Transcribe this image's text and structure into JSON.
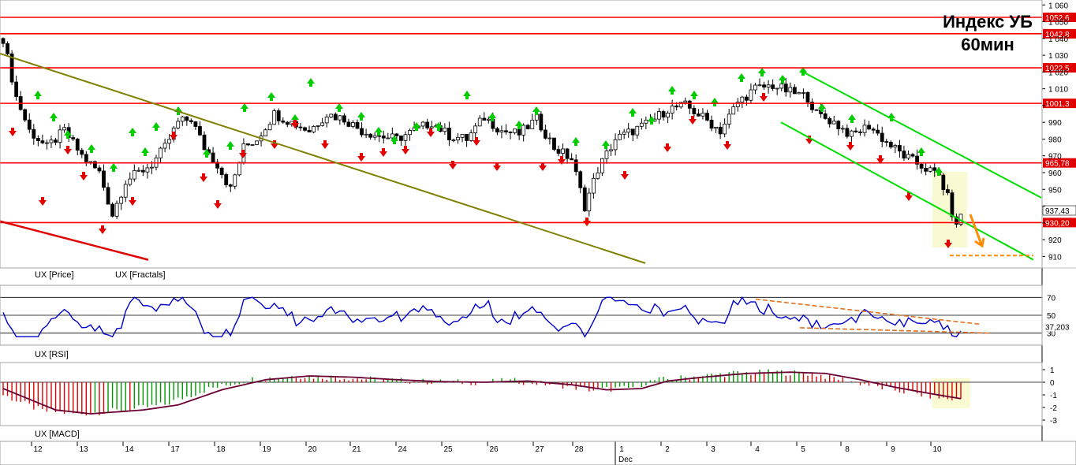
{
  "chart_data": {
    "type": "candlestick",
    "title_line1": "Индекс УБ",
    "title_line2": "60мин",
    "colors": {
      "bull_body": "#ffffff",
      "bear_body": "#000000",
      "candle_line": "#000000",
      "hline": "#ff0000",
      "trend_main": "#808000",
      "trend_fractal": "#e00000",
      "channel": "#00dd00",
      "forecast": "#ff8c00",
      "fractal_up": "#00cc00",
      "fractal_down": "#e00000",
      "highlight": "#fafad2",
      "rsi": "#0000cc",
      "rsi_trend": "#e07020",
      "macd_line": "#6b0033",
      "hist_pos": "#009900",
      "hist_neg": "#dd0000",
      "price_tag": "#e00000",
      "rsi_tag": "#000080"
    },
    "price": {
      "ylim": [
        905,
        1062
      ],
      "y_ticks": [
        910,
        920,
        930,
        940,
        950,
        960,
        970,
        980,
        990,
        1000,
        1010,
        1020,
        1030,
        1040,
        1050,
        1060
      ],
      "y_tick_labels": [
        "910",
        "920",
        "",
        "",
        "950",
        "960",
        "970",
        "980",
        "990",
        "",
        "1 010",
        "1 020",
        "1 030",
        "1 040",
        "1 050",
        "1 060"
      ],
      "levels": [
        {
          "value": 1052.6,
          "label": "1052,6"
        },
        {
          "value": 1042.8,
          "label": "1042,8"
        },
        {
          "value": 1022.5,
          "label": "1022,5"
        },
        {
          "value": 1001.3,
          "label": "1001,3"
        },
        {
          "value": 965.78,
          "label": "965,78"
        },
        {
          "value": 930.2,
          "label": "930,20"
        }
      ],
      "last_price": {
        "value": 937.43,
        "label": "937,43"
      },
      "legend": [
        "UX [Price]",
        "UX [Fractals]"
      ]
    },
    "rsi": {
      "ylim": [
        20,
        80
      ],
      "levels": [
        70,
        50,
        30
      ],
      "tick_labels": [
        "70",
        "50",
        "30"
      ],
      "last": {
        "value": 37.203,
        "label": "37,203"
      },
      "legend": "UX [RSI]"
    },
    "macd": {
      "ylim": [
        -3.5,
        1.5
      ],
      "y_ticks": [
        1,
        0,
        -1,
        -2,
        -3
      ],
      "y_tick_labels": [
        "1",
        "0",
        "-1",
        "-2",
        "-3"
      ],
      "legend": "UX [MACD]"
    },
    "x_labels": [
      "12",
      "13",
      "14",
      "17",
      "18",
      "19",
      "20",
      "21",
      "24",
      "25",
      "26",
      "27",
      "28",
      "1",
      "2",
      "3",
      "4",
      "5",
      "8",
      "9",
      "10"
    ],
    "month_label": "Dec"
  }
}
